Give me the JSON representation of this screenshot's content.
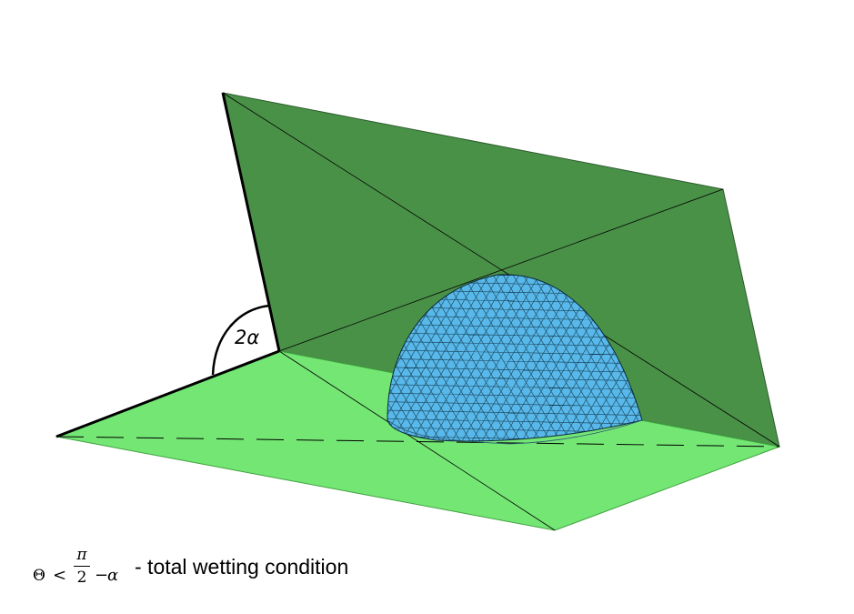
{
  "diagram": {
    "angle_label": "2α",
    "colors": {
      "upper_plane": "#4a9148",
      "lower_plane": "#74e674",
      "droplet": "#58b8ea",
      "mesh_lines": "#0b2a3a",
      "edge_lines": "#000000"
    },
    "icons": {
      "angle_arc": "angle-arc",
      "dashed_axis": "dashed-line"
    }
  },
  "caption": {
    "theta": "Θ",
    "less_than": "<",
    "pi": "π",
    "two": "2",
    "minus": "−",
    "alpha": "α",
    "text": "- total wetting condition"
  }
}
